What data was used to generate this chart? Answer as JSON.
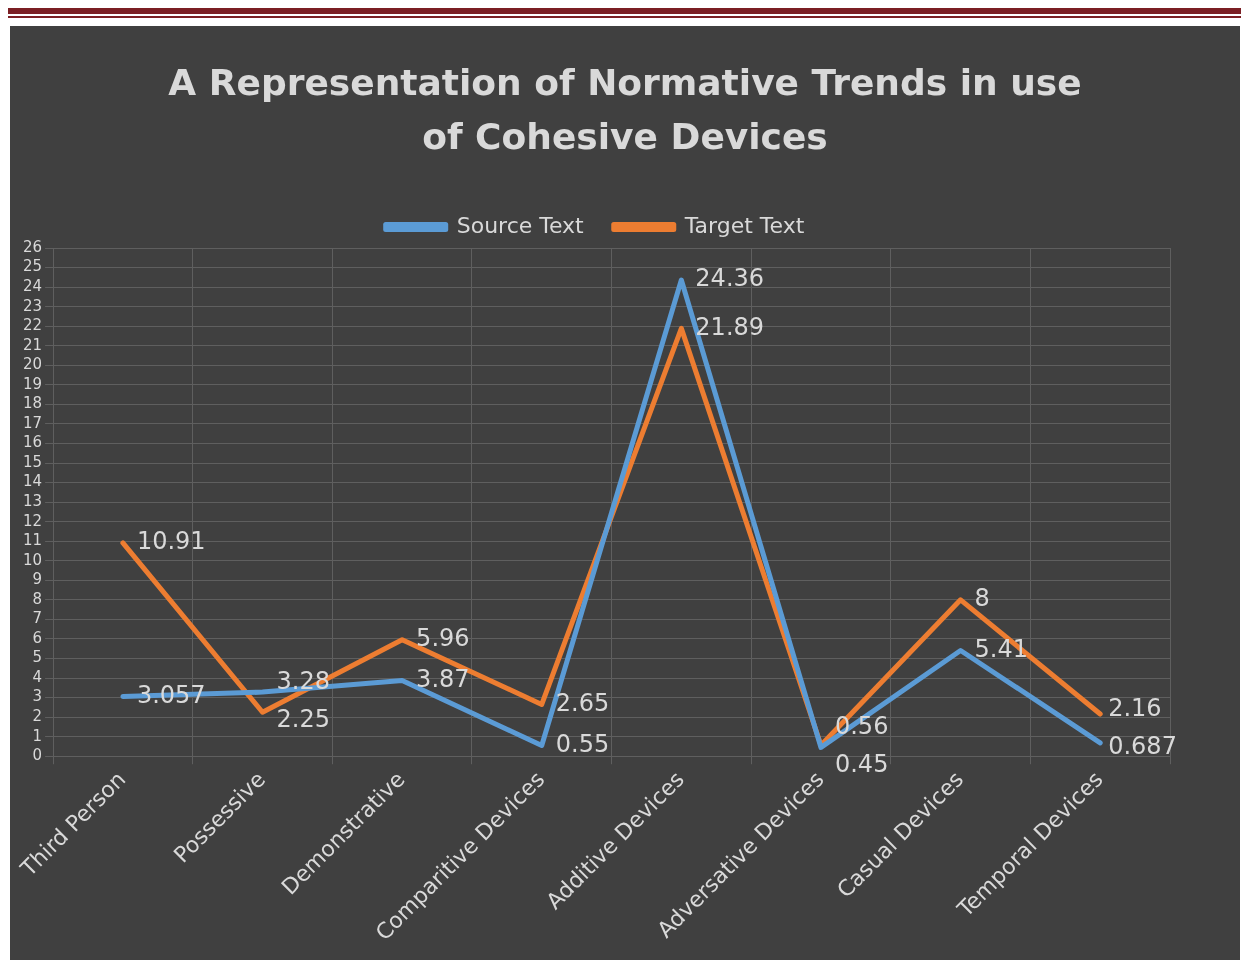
{
  "chart_data": {
    "type": "line",
    "title": "A Representation of Normative Trends in use of Cohesive Devices",
    "categories": [
      "Third Person",
      "Possessive",
      "Demonstrative",
      "Comparitive Devices",
      "Additive Devices",
      "Adversative Devices",
      "Casual Devices",
      "Temporal Devices"
    ],
    "series": [
      {
        "name": "Source Text",
        "color": "#5b9bd5",
        "values": [
          3.057,
          3.28,
          3.87,
          0.55,
          24.36,
          0.45,
          5.41,
          0.687
        ]
      },
      {
        "name": "Target Text",
        "color": "#ed7d31",
        "values": [
          10.91,
          2.25,
          5.96,
          2.65,
          21.89,
          0.56,
          8,
          2.16
        ]
      }
    ],
    "ylim": [
      0,
      26
    ],
    "yticks": [
      0,
      1,
      2,
      3,
      4,
      5,
      6,
      7,
      8,
      9,
      10,
      11,
      12,
      13,
      14,
      15,
      16,
      17,
      18,
      19,
      20,
      21,
      22,
      23,
      24,
      25,
      26
    ],
    "grid": true,
    "legend": "top",
    "data_labels": true,
    "marker": "none",
    "line_style": "solid"
  }
}
